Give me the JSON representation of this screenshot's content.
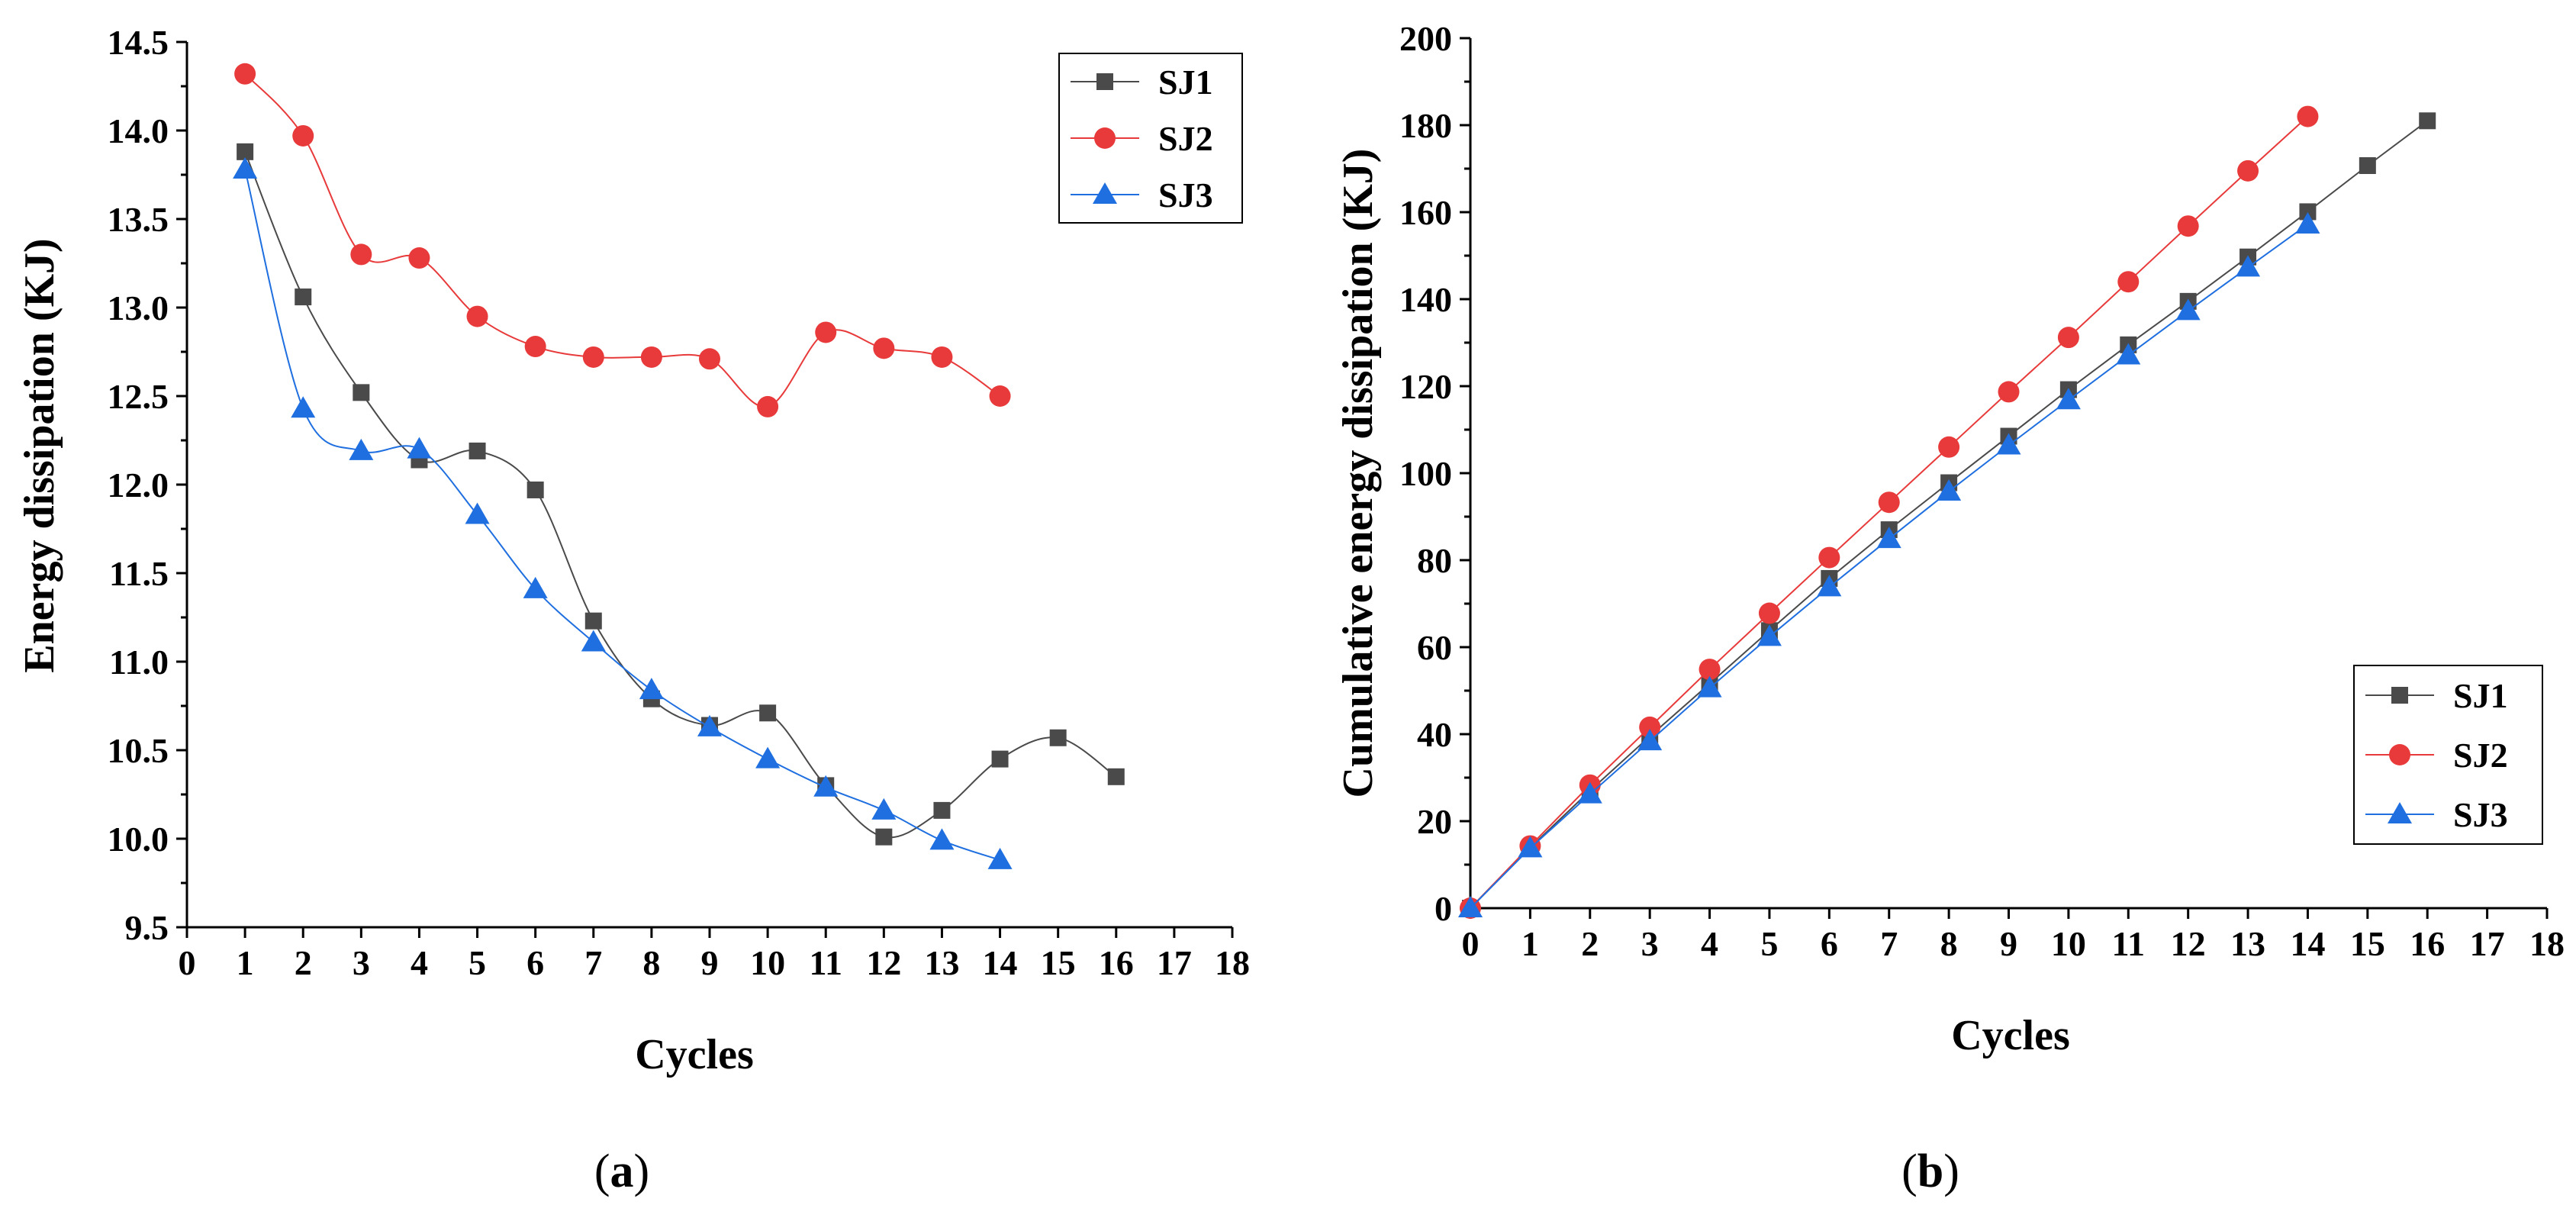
{
  "colors": {
    "SJ1": "#4a4a4a",
    "SJ2": "#e83a3a",
    "SJ3": "#1f6fe0"
  },
  "chart_data": [
    {
      "type": "line",
      "caption_letter": "a",
      "xlabel": "Cycles",
      "ylabel": "Energy dissipation (KJ)",
      "xlim": [
        0,
        18
      ],
      "ylim": [
        9.5,
        14.5
      ],
      "xticks": [
        "0",
        "1",
        "2",
        "3",
        "4",
        "5",
        "6",
        "7",
        "8",
        "9",
        "10",
        "11",
        "12",
        "13",
        "14",
        "15",
        "16",
        "17",
        "18"
      ],
      "yticks": [
        "9.5",
        "10.0",
        "10.5",
        "11.0",
        "11.5",
        "12.0",
        "12.5",
        "13.0",
        "13.5",
        "14.0",
        "14.5"
      ],
      "legend_position": "top-right",
      "smooth": true,
      "series": [
        {
          "name": "SJ1",
          "marker": "square",
          "x": [
            1,
            2,
            3,
            4,
            5,
            6,
            7,
            8,
            9,
            10,
            11,
            12,
            13,
            14,
            15,
            16
          ],
          "y": [
            13.88,
            13.06,
            12.52,
            12.14,
            12.19,
            11.97,
            11.23,
            10.79,
            10.64,
            10.71,
            10.3,
            10.01,
            10.16,
            10.45,
            10.57,
            10.35
          ]
        },
        {
          "name": "SJ2",
          "marker": "circle",
          "x": [
            1,
            2,
            3,
            4,
            5,
            6,
            7,
            8,
            9,
            10,
            11,
            12,
            13,
            14
          ],
          "y": [
            14.32,
            13.97,
            13.3,
            13.28,
            12.95,
            12.78,
            12.72,
            12.72,
            12.71,
            12.44,
            12.86,
            12.77,
            12.72,
            12.5
          ]
        },
        {
          "name": "SJ3",
          "marker": "triangle",
          "x": [
            1,
            2,
            3,
            4,
            5,
            6,
            7,
            8,
            9,
            10,
            11,
            12,
            13,
            14
          ],
          "y": [
            13.78,
            12.43,
            12.19,
            12.2,
            11.83,
            11.41,
            11.11,
            10.84,
            10.63,
            10.45,
            10.29,
            10.16,
            9.99,
            9.88
          ]
        }
      ]
    },
    {
      "type": "line",
      "caption_letter": "b",
      "xlabel": "Cycles",
      "ylabel": "Cumulative energy dissipation (KJ)",
      "xlim": [
        0,
        18
      ],
      "ylim": [
        0,
        200
      ],
      "xticks": [
        "0",
        "1",
        "2",
        "3",
        "4",
        "5",
        "6",
        "7",
        "8",
        "9",
        "10",
        "11",
        "12",
        "13",
        "14",
        "15",
        "16",
        "17",
        "18"
      ],
      "yticks": [
        "0",
        "20",
        "40",
        "60",
        "80",
        "100",
        "120",
        "140",
        "160",
        "180",
        "200"
      ],
      "legend_position": "bottom-right",
      "smooth": false,
      "series": [
        {
          "name": "SJ1",
          "marker": "square",
          "x": [
            0,
            1,
            2,
            3,
            4,
            5,
            6,
            7,
            8,
            9,
            10,
            11,
            12,
            13,
            14,
            15,
            16
          ],
          "y": [
            0,
            13.9,
            27,
            39.5,
            51.6,
            63.8,
            75.8,
            87,
            97.8,
            108.5,
            119.2,
            129.5,
            139.5,
            149.7,
            160.1,
            170.7,
            181
          ]
        },
        {
          "name": "SJ2",
          "marker": "circle",
          "x": [
            0,
            1,
            2,
            3,
            4,
            5,
            6,
            7,
            8,
            9,
            10,
            11,
            12,
            13,
            14
          ],
          "y": [
            0,
            14.3,
            28.3,
            41.6,
            54.9,
            67.8,
            80.6,
            93.3,
            106,
            118.7,
            131.2,
            144,
            156.8,
            169.5,
            182
          ]
        },
        {
          "name": "SJ3",
          "marker": "triangle",
          "x": [
            0,
            1,
            2,
            3,
            4,
            5,
            6,
            7,
            8,
            9,
            10,
            11,
            12,
            13,
            14
          ],
          "y": [
            0,
            13.8,
            26.2,
            38.4,
            50.6,
            62.4,
            73.8,
            84.9,
            95.8,
            106.4,
            116.8,
            127.1,
            137.3,
            147.3,
            157.2
          ]
        }
      ]
    }
  ]
}
